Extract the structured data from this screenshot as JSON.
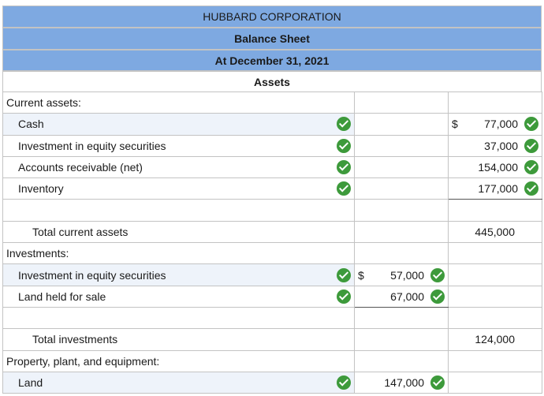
{
  "header": {
    "company": "HUBBARD CORPORATION",
    "statement": "Balance Sheet",
    "date": "At December 31, 2021",
    "section": "Assets"
  },
  "rows": [
    {
      "label": "Current assets:"
    },
    {
      "label": "Cash",
      "col2": "",
      "col3_dollar": "$",
      "col3": "77,000"
    },
    {
      "label": "Investment in equity securities",
      "col3": "37,000"
    },
    {
      "label": "Accounts receivable (net)",
      "col3": "154,000"
    },
    {
      "label": "Inventory",
      "col3": "177,000"
    },
    {
      "label": ""
    },
    {
      "label": "Total current assets",
      "col3": "445,000"
    },
    {
      "label": "Investments:"
    },
    {
      "label": "Investment in equity securities",
      "col2_dollar": "$",
      "col2": "57,000"
    },
    {
      "label": "Land held for sale",
      "col2": "67,000"
    },
    {
      "label": ""
    },
    {
      "label": "Total investments",
      "col3": "124,000"
    },
    {
      "label": "Property, plant, and equipment:"
    },
    {
      "label": "Land",
      "col2": "147,000"
    }
  ],
  "colors": {
    "header_blue": "#7ea9e1",
    "check_green": "#3d9a3b",
    "row_highlight": "#eef3fa"
  },
  "icons": {
    "correct": "check-circle-icon"
  }
}
